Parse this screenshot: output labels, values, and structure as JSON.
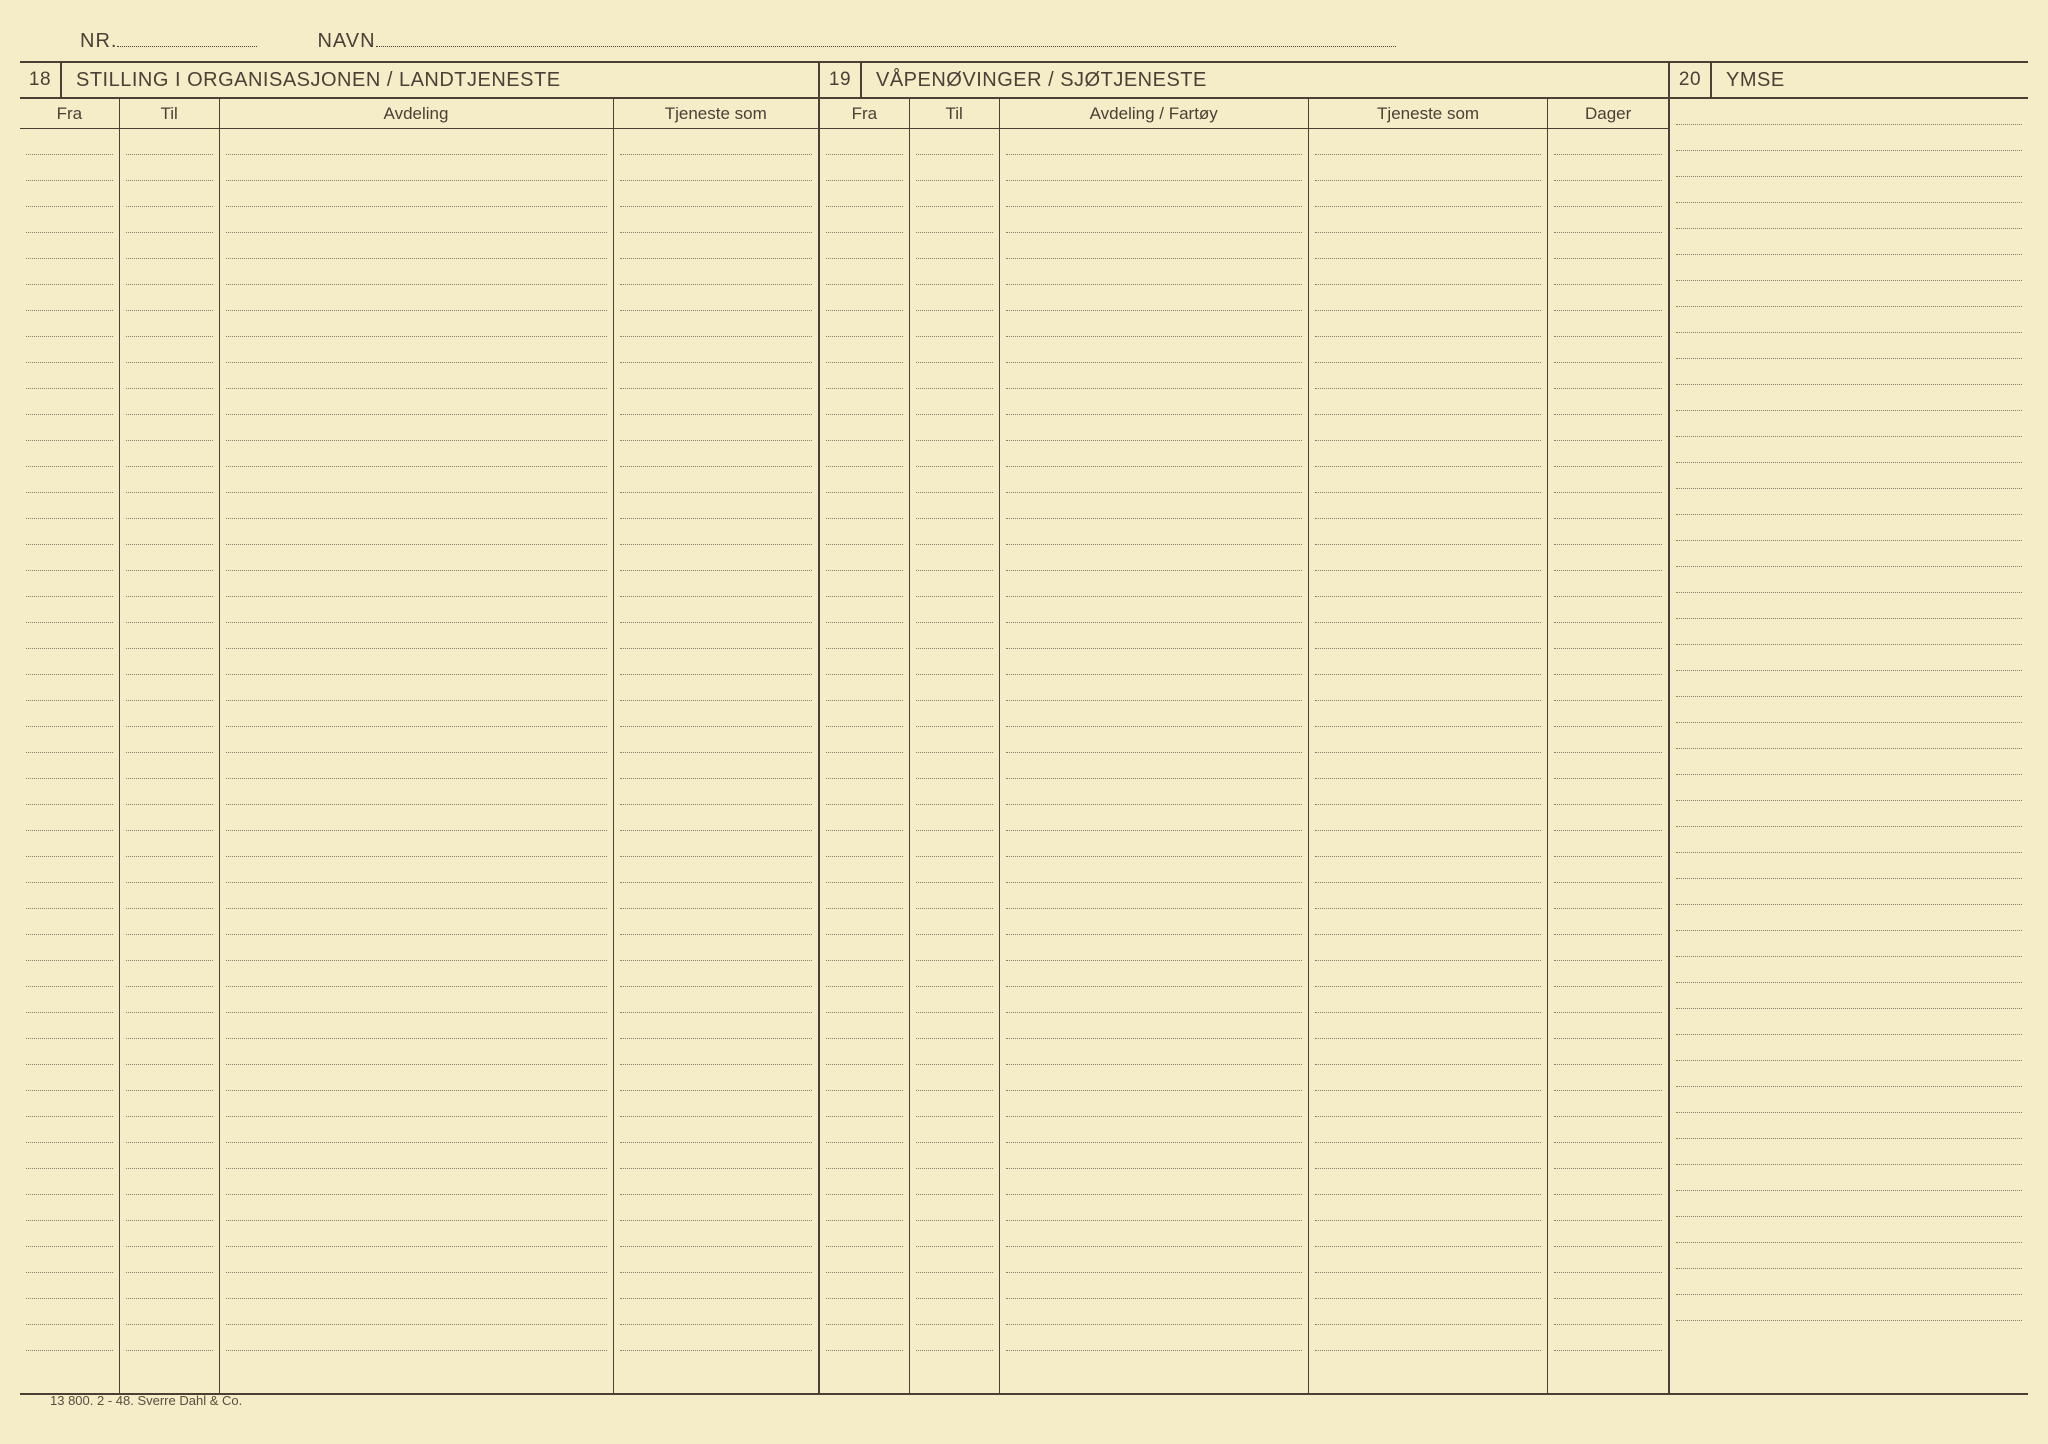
{
  "header": {
    "nr_label": "NR.",
    "navn_label": "NAVN"
  },
  "sections": {
    "s18": {
      "num": "18",
      "title": "STILLING  I  ORGANISASJONEN / LANDTJENESTE",
      "columns": {
        "fra": "Fra",
        "til": "Til",
        "avdeling": "Avdeling",
        "tjeneste": "Tjeneste som"
      }
    },
    "s19": {
      "num": "19",
      "title": "VÅPENØVINGER / SJØTJENESTE",
      "columns": {
        "fra": "Fra",
        "til": "Til",
        "avdeling": "Avdeling / Fartøy",
        "tjeneste": "Tjeneste som",
        "dager": "Dager"
      }
    },
    "s20": {
      "num": "20",
      "title": "YMSE"
    }
  },
  "layout": {
    "row_count": 47,
    "colors": {
      "paper": "#f5ecc8",
      "ink": "#4a4036",
      "dotted": "#8a7d6a"
    }
  },
  "footer": "13 800. 2 - 48. Sverre Dahl & Co."
}
